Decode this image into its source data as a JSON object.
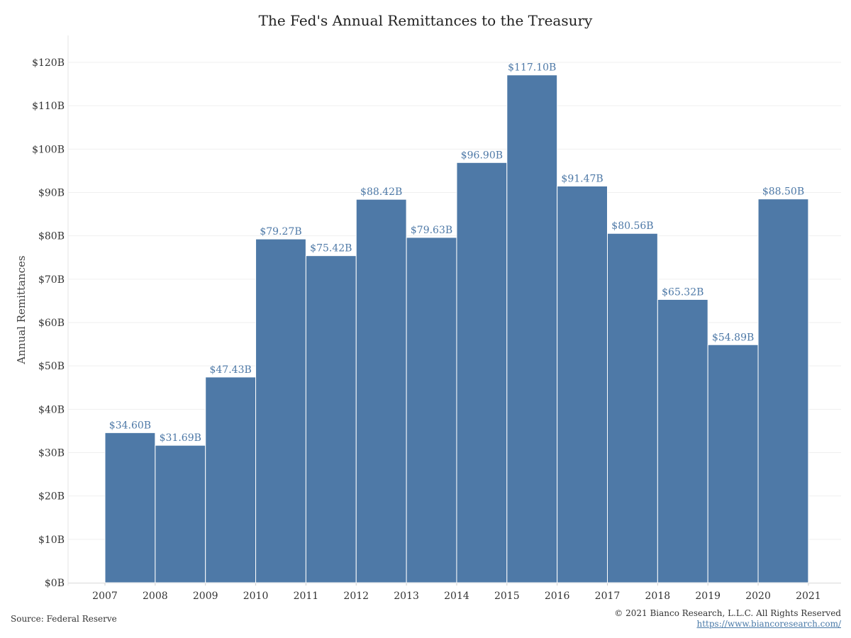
{
  "chart_data": {
    "type": "bar",
    "title": "The Fed's Annual Remittances to the Treasury",
    "ylabel": "Annual Remittances",
    "xlabel": "",
    "x_ticks": [
      "2007",
      "2008",
      "2009",
      "2010",
      "2011",
      "2012",
      "2013",
      "2014",
      "2015",
      "2016",
      "2017",
      "2018",
      "2019",
      "2020",
      "2021"
    ],
    "categories": [
      "2007",
      "2008",
      "2009",
      "2010",
      "2011",
      "2012",
      "2013",
      "2014",
      "2015",
      "2016",
      "2017",
      "2018",
      "2019",
      "2020"
    ],
    "values": [
      34.6,
      31.69,
      47.43,
      79.27,
      75.42,
      88.42,
      79.63,
      96.9,
      117.1,
      91.47,
      80.56,
      65.32,
      54.89,
      88.5
    ],
    "value_labels": [
      "$34.60B",
      "$31.69B",
      "$47.43B",
      "$79.27B",
      "$75.42B",
      "$88.42B",
      "$79.63B",
      "$96.90B",
      "$117.10B",
      "$91.47B",
      "$80.56B",
      "$65.32B",
      "$54.89B",
      "$88.50B"
    ],
    "y_ticks": [
      "$0B",
      "$10B",
      "$20B",
      "$30B",
      "$40B",
      "$50B",
      "$60B",
      "$70B",
      "$80B",
      "$90B",
      "$100B",
      "$110B",
      "$120B"
    ],
    "ylim": [
      0,
      120
    ],
    "grid": true,
    "bar_color": "#4e79a7",
    "label_color": "#4e79a7"
  },
  "footer": {
    "source": "Source: Federal Reserve",
    "copyright": "© 2021 Bianco Research, L.L.C. All Rights Reserved",
    "url": "https://www.biancoresearch.com/"
  }
}
